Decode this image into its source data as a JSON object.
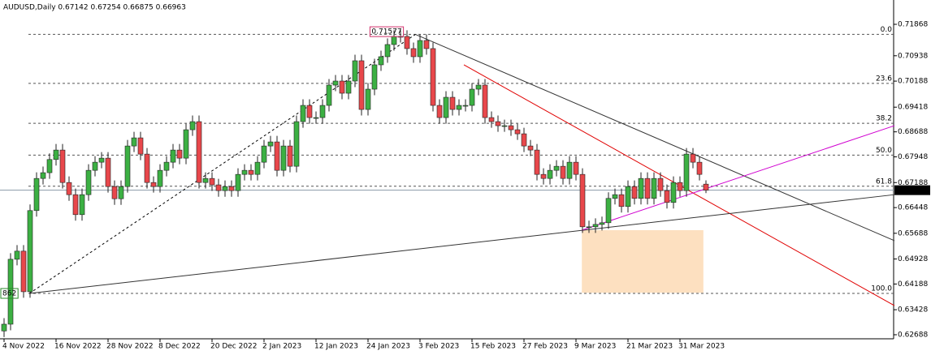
{
  "chart_data": {
    "type": "candlestick",
    "title": "AUDUSD,Daily 0.67142 0.67254 0.66875 0.66963",
    "up_color": "#3cb043",
    "down_color": "#e8474b",
    "categories": [
      "4 Nov 2022",
      null,
      null,
      null,
      null,
      null,
      null,
      null,
      "16 Nov 2022",
      null,
      null,
      null,
      null,
      null,
      null,
      null,
      "28 Nov 2022",
      null,
      null,
      null,
      null,
      null,
      null,
      null,
      "8 Dec 2022",
      null,
      null,
      null,
      null,
      null,
      null,
      null,
      "20 Dec 2022",
      null,
      null,
      null,
      null,
      null,
      null,
      null,
      "2 Jan 2023",
      null,
      null,
      null,
      null,
      null,
      null,
      null,
      "12 Jan 2023",
      null,
      null,
      null,
      null,
      null,
      null,
      null,
      "24 Jan 2023",
      null,
      null,
      null,
      null,
      null,
      null,
      null,
      "3 Feb 2023",
      null,
      null,
      null,
      null,
      null,
      null,
      null,
      "15 Feb 2023",
      null,
      null,
      null,
      null,
      null,
      null,
      null,
      "27 Feb 2023",
      null,
      null,
      null,
      null,
      null,
      null,
      null,
      "9 Mar 2023",
      null,
      null,
      null,
      null,
      null,
      null,
      null,
      "21 Mar 2023",
      null,
      null,
      null,
      null,
      null,
      null,
      null,
      "31 Mar 2023",
      null,
      null,
      null,
      null
    ],
    "ohlc": [
      [
        0.628,
        0.6318,
        0.6262,
        0.63
      ],
      [
        0.63,
        0.651,
        0.6282,
        0.6492
      ],
      [
        0.6492,
        0.6534,
        0.6474,
        0.6516
      ],
      [
        0.6516,
        0.6534,
        0.6378,
        0.6396
      ],
      [
        0.6396,
        0.6654,
        0.6378,
        0.6636
      ],
      [
        0.6636,
        0.6749,
        0.6618,
        0.6731
      ],
      [
        0.6731,
        0.6766,
        0.6713,
        0.6748
      ],
      [
        0.6748,
        0.6805,
        0.673,
        0.6787
      ],
      [
        0.6787,
        0.6833,
        0.6769,
        0.6815
      ],
      [
        0.6815,
        0.6833,
        0.6701,
        0.6719
      ],
      [
        0.6719,
        0.6737,
        0.6665,
        0.6683
      ],
      [
        0.6683,
        0.6701,
        0.6606,
        0.6624
      ],
      [
        0.6624,
        0.6701,
        0.6606,
        0.6683
      ],
      [
        0.6683,
        0.6773,
        0.6665,
        0.6755
      ],
      [
        0.6755,
        0.6797,
        0.6737,
        0.6779
      ],
      [
        0.6779,
        0.6809,
        0.6761,
        0.6791
      ],
      [
        0.6791,
        0.6809,
        0.6689,
        0.6707
      ],
      [
        0.6707,
        0.6725,
        0.6653,
        0.6671
      ],
      [
        0.6671,
        0.6725,
        0.6653,
        0.6707
      ],
      [
        0.6707,
        0.6845,
        0.6689,
        0.6827
      ],
      [
        0.6827,
        0.6869,
        0.6809,
        0.6851
      ],
      [
        0.6851,
        0.6869,
        0.6785,
        0.6803
      ],
      [
        0.6803,
        0.6821,
        0.6701,
        0.6719
      ],
      [
        0.6719,
        0.6737,
        0.6689,
        0.6707
      ],
      [
        0.6707,
        0.6773,
        0.6689,
        0.6755
      ],
      [
        0.6755,
        0.6797,
        0.6737,
        0.6779
      ],
      [
        0.6779,
        0.6833,
        0.6761,
        0.6815
      ],
      [
        0.6815,
        0.6833,
        0.6773,
        0.6791
      ],
      [
        0.6791,
        0.6893,
        0.6773,
        0.6875
      ],
      [
        0.6875,
        0.6917,
        0.6857,
        0.6899
      ],
      [
        0.6899,
        0.6917,
        0.6701,
        0.6719
      ],
      [
        0.6719,
        0.6749,
        0.6701,
        0.6731
      ],
      [
        0.6731,
        0.6749,
        0.6694,
        0.6712
      ],
      [
        0.6712,
        0.673,
        0.6677,
        0.6695
      ],
      [
        0.6695,
        0.6725,
        0.6677,
        0.6707
      ],
      [
        0.6707,
        0.6725,
        0.6677,
        0.6695
      ],
      [
        0.6695,
        0.6761,
        0.6677,
        0.6743
      ],
      [
        0.6743,
        0.6773,
        0.6725,
        0.6755
      ],
      [
        0.6755,
        0.6773,
        0.6725,
        0.6743
      ],
      [
        0.6743,
        0.6797,
        0.6725,
        0.6779
      ],
      [
        0.6779,
        0.6845,
        0.6761,
        0.6827
      ],
      [
        0.6827,
        0.6857,
        0.6809,
        0.6839
      ],
      [
        0.6839,
        0.6857,
        0.6737,
        0.6755
      ],
      [
        0.6755,
        0.6845,
        0.6737,
        0.6827
      ],
      [
        0.6827,
        0.6845,
        0.6749,
        0.6767
      ],
      [
        0.6767,
        0.6917,
        0.6749,
        0.6899
      ],
      [
        0.6899,
        0.6965,
        0.6881,
        0.6947
      ],
      [
        0.6947,
        0.6965,
        0.6893,
        0.6911
      ],
      [
        0.6911,
        0.6929,
        0.6893,
        0.6911
      ],
      [
        0.6911,
        0.6965,
        0.6893,
        0.6947
      ],
      [
        0.6947,
        0.7025,
        0.6929,
        0.7007
      ],
      [
        0.7007,
        0.7037,
        0.6989,
        0.7019
      ],
      [
        0.7019,
        0.7037,
        0.6965,
        0.6983
      ],
      [
        0.6983,
        0.7037,
        0.6965,
        0.7019
      ],
      [
        0.7019,
        0.7097,
        0.7001,
        0.7079
      ],
      [
        0.7079,
        0.7097,
        0.6917,
        0.6935
      ],
      [
        0.6935,
        0.7013,
        0.6917,
        0.6995
      ],
      [
        0.6995,
        0.7085,
        0.6977,
        0.7067
      ],
      [
        0.7067,
        0.7109,
        0.7049,
        0.7091
      ],
      [
        0.7091,
        0.7145,
        0.7073,
        0.7127
      ],
      [
        0.7127,
        0.7169,
        0.7109,
        0.7151
      ],
      [
        0.7151,
        0.7169,
        0.7133,
        0.7151
      ],
      [
        0.7151,
        0.7169,
        0.7097,
        0.7115
      ],
      [
        0.7115,
        0.7133,
        0.7073,
        0.7091
      ],
      [
        0.7091,
        0.7157,
        0.7073,
        0.7139
      ],
      [
        0.7139,
        0.7157,
        0.7097,
        0.7115
      ],
      [
        0.7115,
        0.7133,
        0.6929,
        0.6947
      ],
      [
        0.6947,
        0.6965,
        0.6893,
        0.6911
      ],
      [
        0.6911,
        0.6989,
        0.6893,
        0.6971
      ],
      [
        0.6971,
        0.6989,
        0.6917,
        0.6935
      ],
      [
        0.6935,
        0.6965,
        0.6917,
        0.6947
      ],
      [
        0.6947,
        0.6965,
        0.6929,
        0.6947
      ],
      [
        0.6947,
        0.7013,
        0.6929,
        0.6995
      ],
      [
        0.6995,
        0.7025,
        0.6977,
        0.7007
      ],
      [
        0.7007,
        0.7025,
        0.6893,
        0.6911
      ],
      [
        0.6911,
        0.6929,
        0.6881,
        0.6899
      ],
      [
        0.6899,
        0.6917,
        0.6869,
        0.6887
      ],
      [
        0.6887,
        0.6905,
        0.6869,
        0.6887
      ],
      [
        0.6887,
        0.6905,
        0.6857,
        0.6875
      ],
      [
        0.6875,
        0.6893,
        0.6845,
        0.6863
      ],
      [
        0.6863,
        0.6881,
        0.6809,
        0.6827
      ],
      [
        0.6827,
        0.6845,
        0.6797,
        0.6815
      ],
      [
        0.6815,
        0.6833,
        0.6725,
        0.6743
      ],
      [
        0.6743,
        0.6761,
        0.6713,
        0.6731
      ],
      [
        0.6731,
        0.6773,
        0.6713,
        0.6755
      ],
      [
        0.6755,
        0.6785,
        0.6737,
        0.6767
      ],
      [
        0.6767,
        0.6785,
        0.6713,
        0.6731
      ],
      [
        0.6731,
        0.6797,
        0.6713,
        0.6779
      ],
      [
        0.6779,
        0.6797,
        0.6725,
        0.6743
      ],
      [
        0.6743,
        0.6761,
        0.657,
        0.6588
      ],
      [
        0.6588,
        0.6606,
        0.657,
        0.6588
      ],
      [
        0.6588,
        0.6613,
        0.657,
        0.6595
      ],
      [
        0.6595,
        0.6618,
        0.6577,
        0.66
      ],
      [
        0.66,
        0.669,
        0.6582,
        0.6672
      ],
      [
        0.6672,
        0.6701,
        0.6654,
        0.6683
      ],
      [
        0.6683,
        0.6701,
        0.663,
        0.6648
      ],
      [
        0.6648,
        0.6725,
        0.663,
        0.6707
      ],
      [
        0.6707,
        0.6725,
        0.6654,
        0.6672
      ],
      [
        0.6672,
        0.6749,
        0.6654,
        0.6731
      ],
      [
        0.6731,
        0.6749,
        0.6654,
        0.6672
      ],
      [
        0.6672,
        0.6749,
        0.6654,
        0.6731
      ],
      [
        0.6731,
        0.6749,
        0.6677,
        0.6695
      ],
      [
        0.6695,
        0.6713,
        0.6642,
        0.666
      ],
      [
        0.666,
        0.6737,
        0.6642,
        0.6719
      ],
      [
        0.6719,
        0.6737,
        0.6677,
        0.6695
      ],
      [
        0.6695,
        0.6821,
        0.6677,
        0.6803
      ],
      [
        0.6803,
        0.6821,
        0.6761,
        0.6779
      ],
      [
        0.6779,
        0.6797,
        0.6725,
        0.6743
      ],
      [
        0.67142,
        0.67254,
        0.66875,
        0.66963
      ]
    ],
    "ylim": [
      0.62568,
      0.72587
    ],
    "yticks": [
      0.71868,
      0.70938,
      0.70188,
      0.69418,
      0.68688,
      0.67948,
      0.67188,
      0.66448,
      0.65688,
      0.64928,
      0.64188,
      0.63428,
      0.62688
    ],
    "current_price": {
      "value": 0.66963,
      "label": "0.66963"
    },
    "fib_levels": [
      {
        "label": "0.0",
        "price": 0.7157
      },
      {
        "label": "23.6",
        "price": 0.7012
      },
      {
        "label": "38.2",
        "price": 0.6894
      },
      {
        "label": "50.0",
        "price": 0.68
      },
      {
        "label": "61.8",
        "price": 0.6708
      },
      {
        "label": "100.0",
        "price": 0.6391
      }
    ],
    "trendlines": [
      {
        "color": "#000000",
        "dashed": true,
        "points": [
          [
            3.9,
            0.6391
          ],
          [
            63.3,
            0.7157
          ]
        ]
      },
      {
        "color": "#333333",
        "dashed": false,
        "points": [
          [
            63.3,
            0.7157
          ],
          [
            137,
            0.6547
          ]
        ]
      },
      {
        "color": "#e00000",
        "dashed": false,
        "points": [
          [
            70.75,
            0.7067
          ],
          [
            137,
            0.6355
          ]
        ]
      },
      {
        "color": "#333333",
        "dashed": false,
        "points": [
          [
            3.9,
            0.6391
          ],
          [
            137,
            0.6683
          ]
        ]
      },
      {
        "color": "#d000d0",
        "dashed": false,
        "points": [
          [
            88.9,
            0.6578
          ],
          [
            137,
            0.6887
          ]
        ]
      }
    ],
    "zone": {
      "color": "#fde0c0",
      "x": [
        88.9,
        107.6
      ],
      "price": [
        0.6578,
        0.6393
      ]
    },
    "annotations": [
      {
        "text": "0.71577",
        "index": 56.3,
        "price": 0.7165,
        "color": "#d0306a"
      },
      {
        "text": "862",
        "index": -0.5,
        "price": 0.6391,
        "color": "#2a8a2a"
      }
    ]
  }
}
